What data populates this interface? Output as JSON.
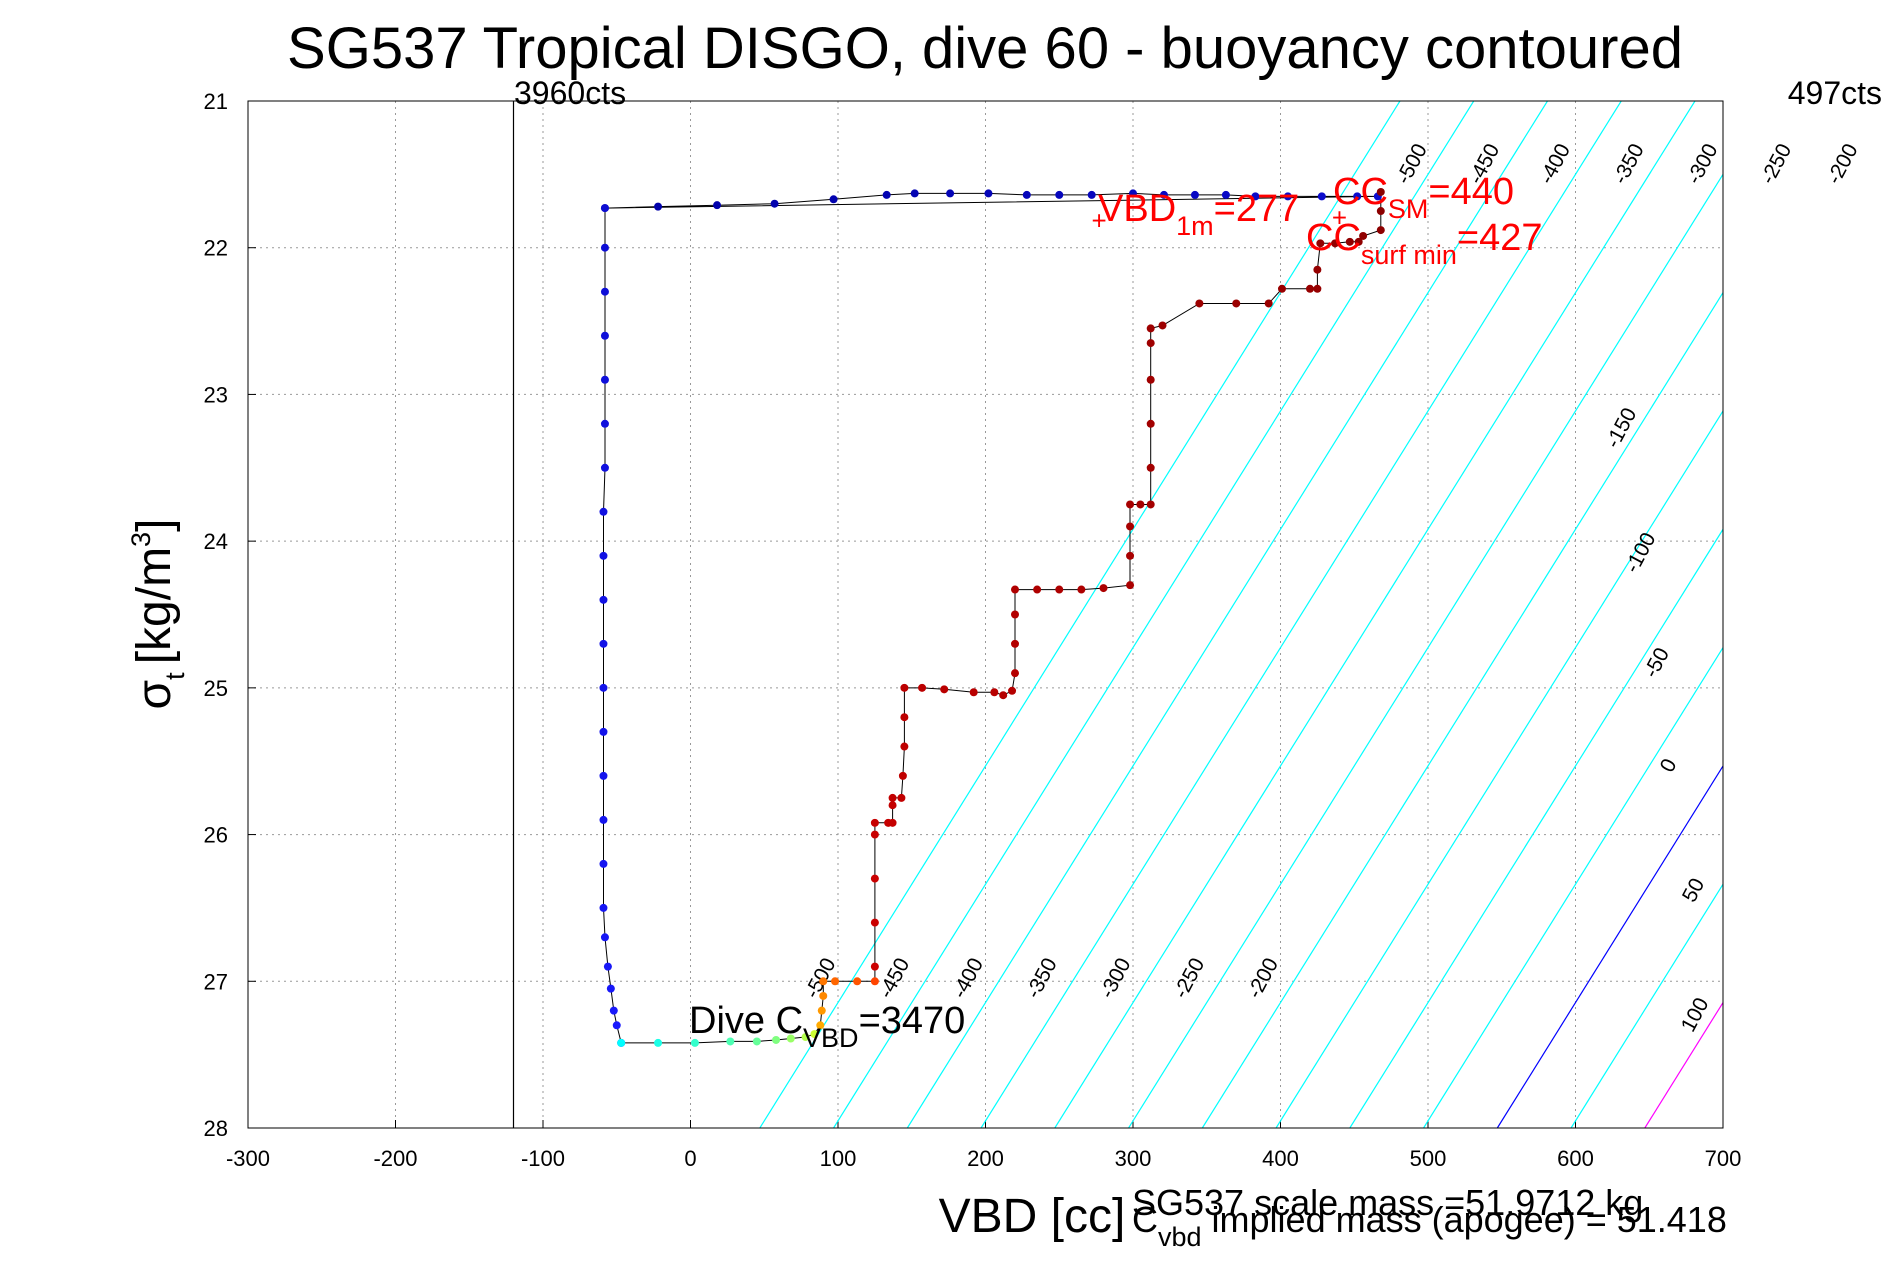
{
  "chart_data": {
    "type": "scatter",
    "title": "SG537 Tropical DISGO, dive 60 - buoyancy contoured",
    "xlabel": "VBD [cc]",
    "ylabel": "σ",
    "ylabel_sub": "t",
    "ylabel_unit": "[kg/m",
    "ylabel_sup": "3",
    "ylabel_close": "]",
    "xlim": [
      -300,
      700
    ],
    "ylim": [
      21,
      28
    ],
    "y_reversed": true,
    "grid": true,
    "xticks": [
      "-300",
      "-200",
      "-100",
      "0",
      "100",
      "200",
      "300",
      "400",
      "500",
      "600",
      "700"
    ],
    "yticks": [
      "21",
      "22",
      "23",
      "24",
      "25",
      "26",
      "27",
      "28"
    ],
    "vertical_line": {
      "x": -120,
      "label_left": "3960cts",
      "label_right": "497cts"
    },
    "contours": [
      {
        "level": -500,
        "x_at_28": 47,
        "color": "#00ffff",
        "label": "-500"
      },
      {
        "level": -450,
        "x_at_28": 97,
        "color": "#00ffff",
        "label": "-450"
      },
      {
        "level": -400,
        "x_at_28": 147,
        "color": "#00ffff",
        "label": "-400"
      },
      {
        "level": -350,
        "x_at_28": 197,
        "color": "#00ffff",
        "label": "-350"
      },
      {
        "level": -300,
        "x_at_28": 247,
        "color": "#00ffff",
        "label": "-300"
      },
      {
        "level": -250,
        "x_at_28": 297,
        "color": "#00ffff",
        "label": "-250"
      },
      {
        "level": -200,
        "x_at_28": 347,
        "color": "#00ffff",
        "label": "-200"
      },
      {
        "level": -150,
        "x_at_28": 397,
        "color": "#00ffff",
        "label": "-150"
      },
      {
        "level": -100,
        "x_at_28": 447,
        "color": "#00ffff",
        "label": "-100"
      },
      {
        "level": -50,
        "x_at_28": 497,
        "color": "#00ffff",
        "label": "-50"
      },
      {
        "level": 0,
        "x_at_28": 547,
        "color": "#0000ff",
        "label": "0"
      },
      {
        "level": 50,
        "x_at_28": 597,
        "color": "#00ffff",
        "label": "50"
      },
      {
        "level": 100,
        "x_at_28": 647,
        "color": "#ff00ff",
        "label": "100"
      }
    ],
    "contour_slope_x_per_sigma": 62,
    "series": [
      {
        "color_start": "#0000a8",
        "color_end": "#1a1aff",
        "points": [
          [
            -58,
            21.73
          ],
          [
            -22,
            21.72
          ],
          [
            18,
            21.71
          ],
          [
            57,
            21.7
          ],
          [
            97,
            21.67
          ],
          [
            133,
            21.64
          ],
          [
            152,
            21.63
          ],
          [
            176,
            21.63
          ],
          [
            202,
            21.63
          ],
          [
            228,
            21.64
          ],
          [
            250,
            21.64
          ],
          [
            272,
            21.64
          ],
          [
            300,
            21.63
          ],
          [
            321,
            21.64
          ],
          [
            342,
            21.64
          ],
          [
            363,
            21.64
          ],
          [
            383,
            21.65
          ],
          [
            405,
            21.65
          ],
          [
            428,
            21.65
          ],
          [
            452,
            21.65
          ],
          [
            466,
            21.65
          ],
          [
            -58,
            21.73
          ],
          [
            -58,
            22.0
          ],
          [
            -58,
            22.3
          ],
          [
            -58,
            22.6
          ],
          [
            -58,
            22.9
          ],
          [
            -58,
            23.2
          ],
          [
            -58,
            23.5
          ],
          [
            -59,
            23.8
          ],
          [
            -59,
            24.1
          ],
          [
            -59,
            24.4
          ],
          [
            -59,
            24.7
          ],
          [
            -59,
            25.0
          ],
          [
            -59,
            25.3
          ],
          [
            -59,
            25.6
          ],
          [
            -59,
            25.9
          ],
          [
            -59,
            26.2
          ],
          [
            -59,
            26.5
          ],
          [
            -58,
            26.7
          ],
          [
            -56,
            26.9
          ],
          [
            -54,
            27.05
          ],
          [
            -52,
            27.2
          ],
          [
            -50,
            27.3
          ],
          [
            -47,
            27.42
          ]
        ]
      },
      {
        "color_start": "#00ffff",
        "color_end": "#ccff33",
        "points": [
          [
            -47,
            27.42
          ],
          [
            -22,
            27.42
          ],
          [
            3,
            27.42
          ],
          [
            27,
            27.41
          ],
          [
            45,
            27.41
          ],
          [
            58,
            27.4
          ],
          [
            68,
            27.39
          ],
          [
            78,
            27.38
          ],
          [
            84,
            27.36
          ]
        ]
      },
      {
        "color_start": "#ffaa00",
        "color_end": "#ff4400",
        "points": [
          [
            88,
            27.3
          ],
          [
            89,
            27.2
          ],
          [
            90,
            27.1
          ],
          [
            90,
            27.0
          ],
          [
            98,
            27.0
          ],
          [
            113,
            27.0
          ],
          [
            125,
            27.0
          ]
        ]
      },
      {
        "color_start": "#cc0000",
        "color_end": "#8b0000",
        "points": [
          [
            125,
            26.9
          ],
          [
            125,
            26.6
          ],
          [
            125,
            26.3
          ],
          [
            125,
            26.0
          ],
          [
            125,
            25.92
          ],
          [
            134,
            25.92
          ],
          [
            137,
            25.92
          ],
          [
            137,
            25.8
          ],
          [
            137,
            25.75
          ],
          [
            143,
            25.75
          ],
          [
            144,
            25.6
          ],
          [
            145,
            25.4
          ],
          [
            145,
            25.2
          ],
          [
            145,
            25.0
          ],
          [
            157,
            25.0
          ],
          [
            172,
            25.01
          ],
          [
            192,
            25.03
          ],
          [
            206,
            25.03
          ],
          [
            212,
            25.05
          ],
          [
            218,
            25.02
          ],
          [
            220,
            24.9
          ],
          [
            220,
            24.7
          ],
          [
            220,
            24.5
          ],
          [
            220,
            24.33
          ],
          [
            235,
            24.33
          ],
          [
            250,
            24.33
          ],
          [
            265,
            24.33
          ],
          [
            280,
            24.32
          ],
          [
            298,
            24.3
          ],
          [
            298,
            24.1
          ],
          [
            298,
            23.9
          ],
          [
            298,
            23.75
          ],
          [
            305,
            23.75
          ],
          [
            312,
            23.75
          ],
          [
            312,
            23.5
          ],
          [
            312,
            23.2
          ],
          [
            312,
            22.9
          ],
          [
            312,
            22.65
          ],
          [
            312,
            22.55
          ],
          [
            320,
            22.53
          ],
          [
            345,
            22.38
          ],
          [
            370,
            22.38
          ],
          [
            392,
            22.38
          ],
          [
            401,
            22.28
          ],
          [
            420,
            22.28
          ],
          [
            425,
            22.28
          ],
          [
            425,
            22.15
          ],
          [
            427,
            21.97
          ],
          [
            437,
            21.97
          ],
          [
            447,
            21.96
          ],
          [
            453,
            21.96
          ],
          [
            456,
            21.92
          ],
          [
            468,
            21.88
          ],
          [
            468,
            21.75
          ],
          [
            468,
            21.62
          ]
        ]
      }
    ],
    "markers": [
      {
        "x": 277,
        "y": 21.82,
        "label": "+"
      },
      {
        "x": 440,
        "y": 21.8,
        "label": "+"
      }
    ],
    "annotations": {
      "vbd1m": {
        "main": "VBD",
        "sub": "1m",
        "tail": "=277"
      },
      "ccsm": {
        "main": "CC",
        "sub": "SM",
        "tail": "=440"
      },
      "ccsurf": {
        "main": "CC",
        "sub": "surf min",
        "tail": "=427"
      },
      "divec": {
        "main": "Dive C",
        "sub": "VBD",
        "tail": "=3470"
      }
    },
    "footer": {
      "line1": "SG537 scale mass =51.9712 kg",
      "line2_main": "C",
      "line2_sub": "vbd",
      "line2_tail": " implied mass (apogee) = 51.418"
    }
  }
}
